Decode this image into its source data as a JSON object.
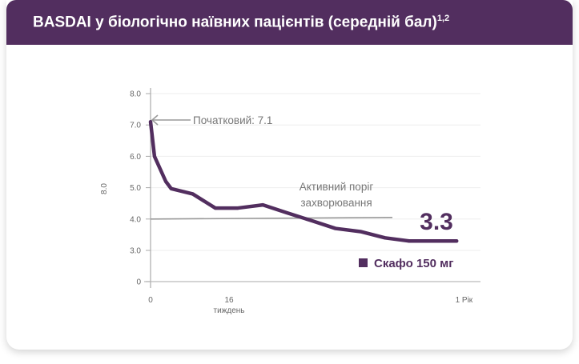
{
  "header": {
    "title": "BASDAI у біологічно наївних пацієнтів (середній бал)",
    "superscript": "1,2"
  },
  "chart_data": {
    "type": "line",
    "title": "BASDAI у біологічно наївних пацієнтів (середній бал)",
    "xlabel": "тиждень",
    "ylabel": "8.0",
    "y_tick_labels": [
      "0",
      "3.0",
      "4.0",
      "5.0",
      "6.0",
      "7.0",
      "8.0"
    ],
    "x_tick_labels": [
      "0",
      "16",
      "1 Рік"
    ],
    "grid": true,
    "legend_position": "bottom-right",
    "series": [
      {
        "name": "Скафо 150 мг",
        "color": "#522e5f",
        "x": [
          0,
          0.8,
          3.1,
          4.2,
          8.6,
          13.2,
          17.8,
          22.9,
          27.8,
          32.8,
          37.7,
          42.8,
          47.8,
          52.7,
          62.4
        ],
        "y": [
          7.1,
          6.0,
          5.2,
          4.97,
          4.8,
          4.35,
          4.35,
          4.45,
          4.2,
          3.95,
          3.7,
          3.6,
          3.4,
          3.3,
          3.3
        ]
      }
    ],
    "threshold": {
      "value": 4.0,
      "label_line1": "Активний поріг",
      "label_line2": "захворювання"
    },
    "annotations": {
      "initial": "Початковий: 7.1",
      "final": "3.3"
    }
  }
}
